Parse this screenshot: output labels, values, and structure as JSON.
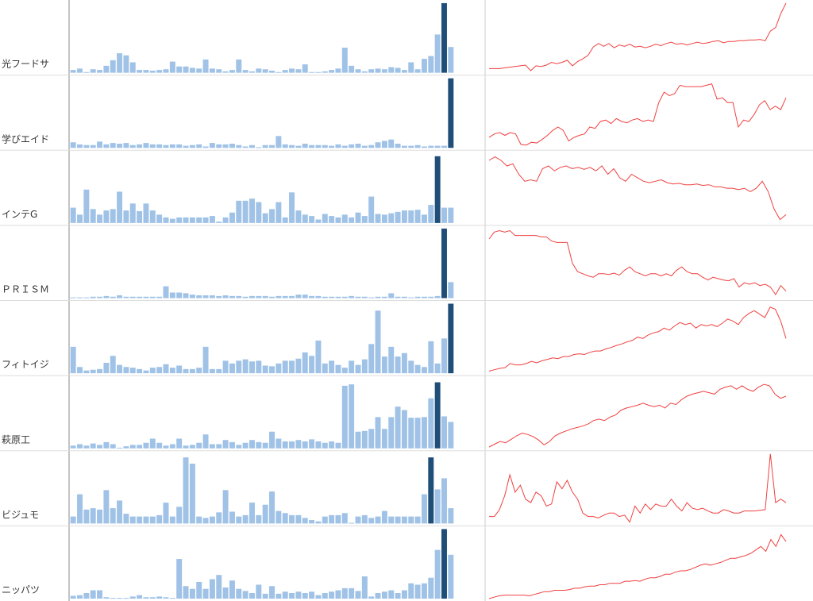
{
  "chart_data": [
    {
      "type": "combo",
      "title": "光フードサ",
      "ylim": [
        0,
        100
      ],
      "bars": {
        "color": "#9fc2e6",
        "highlight_color": "#1f4e79",
        "highlight": [
          56
        ],
        "values": [
          4,
          6,
          1,
          5,
          4,
          10,
          18,
          28,
          25,
          15,
          4,
          4,
          3,
          4,
          5,
          16,
          9,
          9,
          7,
          6,
          19,
          6,
          5,
          2,
          4,
          19,
          4,
          2,
          6,
          5,
          3,
          1,
          4,
          6,
          5,
          12,
          1,
          1,
          2,
          4,
          6,
          36,
          10,
          5,
          2,
          5,
          6,
          5,
          8,
          7,
          4,
          15,
          5,
          20,
          24,
          55,
          100,
          37
        ]
      },
      "line": {
        "color": "#f04040",
        "values": [
          6,
          6,
          6,
          7,
          8,
          9,
          10,
          11,
          3,
          10,
          9,
          11,
          15,
          13,
          15,
          18,
          10,
          16,
          20,
          25,
          37,
          42,
          38,
          42,
          36,
          40,
          38,
          41,
          37,
          38,
          36,
          38,
          41,
          39,
          42,
          44,
          41,
          42,
          40,
          42,
          44,
          42,
          43,
          45,
          46,
          43,
          45,
          45,
          46,
          46,
          47,
          47,
          48,
          46,
          60,
          65,
          85,
          100
        ]
      }
    },
    {
      "type": "combo",
      "title": "学びエイド",
      "ylim": [
        0,
        100
      ],
      "bars": {
        "color": "#9fc2e6",
        "highlight_color": "#1f4e79",
        "highlight": [
          57
        ],
        "values": [
          8,
          5,
          4,
          4,
          9,
          5,
          7,
          6,
          7,
          4,
          5,
          7,
          5,
          5,
          4,
          5,
          5,
          3,
          4,
          5,
          2,
          7,
          5,
          5,
          6,
          4,
          2,
          4,
          1,
          4,
          4,
          17,
          5,
          4,
          3,
          6,
          4,
          4,
          4,
          3,
          5,
          3,
          5,
          6,
          3,
          4,
          8,
          10,
          12,
          6,
          3,
          3,
          4,
          2,
          3,
          3,
          3,
          100
        ]
      },
      "line": {
        "color": "#f04040",
        "values": [
          15,
          20,
          22,
          18,
          22,
          20,
          5,
          4,
          8,
          7,
          12,
          18,
          25,
          30,
          25,
          10,
          15,
          18,
          20,
          30,
          28,
          38,
          40,
          35,
          42,
          38,
          36,
          40,
          42,
          38,
          40,
          38,
          65,
          80,
          75,
          78,
          90,
          88,
          88,
          88,
          88,
          90,
          92,
          70,
          72,
          65,
          65,
          30,
          40,
          38,
          48,
          62,
          68,
          55,
          60,
          55,
          72
        ]
      }
    },
    {
      "type": "combo",
      "title": "インテG",
      "ylim": [
        0,
        100
      ],
      "bars": {
        "color": "#9fc2e6",
        "highlight_color": "#1f4e79",
        "highlight": [
          55
        ],
        "values": [
          22,
          12,
          48,
          20,
          12,
          18,
          20,
          45,
          18,
          28,
          17,
          28,
          18,
          12,
          8,
          6,
          8,
          8,
          8,
          8,
          8,
          10,
          2,
          8,
          15,
          32,
          32,
          35,
          30,
          14,
          20,
          30,
          8,
          44,
          18,
          12,
          10,
          5,
          13,
          10,
          8,
          12,
          8,
          15,
          10,
          38,
          13,
          12,
          14,
          16,
          18,
          18,
          19,
          12,
          26,
          96,
          22,
          22
        ]
      },
      "line": {
        "color": "#f04040",
        "values": [
          90,
          95,
          90,
          82,
          85,
          70,
          60,
          62,
          60,
          78,
          82,
          75,
          80,
          82,
          78,
          80,
          77,
          80,
          75,
          82,
          70,
          78,
          65,
          60,
          70,
          65,
          60,
          58,
          60,
          62,
          58,
          56,
          57,
          55,
          55,
          56,
          54,
          55,
          52,
          52,
          50,
          50,
          48,
          50,
          45,
          50,
          60,
          45,
          20,
          5,
          12
        ]
      }
    },
    {
      "type": "combo",
      "title": "ＰＲＩＳＭ",
      "ylim": [
        0,
        100
      ],
      "bars": {
        "color": "#9fc2e6",
        "highlight_color": "#1f4e79",
        "highlight": [
          56
        ],
        "values": [
          1,
          1,
          1,
          2,
          2,
          3,
          2,
          4,
          2,
          2,
          2,
          2,
          2,
          2,
          17,
          8,
          8,
          7,
          5,
          4,
          4,
          4,
          3,
          4,
          3,
          3,
          2,
          3,
          3,
          3,
          2,
          3,
          3,
          3,
          5,
          5,
          3,
          3,
          2,
          2,
          2,
          2,
          3,
          2,
          2,
          1,
          2,
          2,
          7,
          2,
          2,
          1,
          2,
          2,
          2,
          3,
          100,
          23
        ]
      },
      "line": {
        "color": "#f04040",
        "values": [
          85,
          95,
          97,
          95,
          97,
          90,
          90,
          90,
          90,
          90,
          88,
          88,
          82,
          80,
          80,
          80,
          50,
          38,
          35,
          32,
          30,
          35,
          35,
          34,
          36,
          33,
          40,
          45,
          38,
          35,
          32,
          35,
          35,
          32,
          35,
          32,
          40,
          45,
          38,
          35,
          35,
          30,
          26,
          30,
          28,
          26,
          25,
          28,
          16,
          22,
          20,
          22,
          18,
          20,
          16,
          5,
          18,
          10
        ]
      }
    },
    {
      "type": "combo",
      "title": "フィトイジ",
      "ylim": [
        0,
        100
      ],
      "bars": {
        "color": "#9fc2e6",
        "highlight_color": "#1f4e79",
        "highlight": [
          57
        ],
        "values": [
          38,
          9,
          4,
          5,
          6,
          15,
          25,
          12,
          9,
          8,
          6,
          4,
          8,
          9,
          13,
          8,
          11,
          6,
          6,
          8,
          38,
          6,
          6,
          18,
          14,
          18,
          20,
          17,
          18,
          11,
          10,
          14,
          18,
          18,
          21,
          30,
          25,
          47,
          14,
          18,
          12,
          8,
          18,
          12,
          20,
          42,
          90,
          24,
          38,
          24,
          29,
          18,
          12,
          9,
          46,
          14,
          50,
          100
        ]
      },
      "line": {
        "color": "#f04040",
        "values": [
          3,
          5,
          7,
          8,
          14,
          12,
          12,
          14,
          17,
          15,
          18,
          20,
          22,
          21,
          24,
          24,
          27,
          28,
          27,
          30,
          32,
          32,
          35,
          37,
          40,
          42,
          45,
          47,
          52,
          50,
          55,
          58,
          60,
          65,
          62,
          68,
          73,
          70,
          72,
          65,
          70,
          68,
          70,
          67,
          72,
          78,
          75,
          70,
          80,
          86,
          90,
          85,
          80,
          95,
          92,
          75,
          50
        ]
      }
    },
    {
      "type": "combo",
      "title": "萩原工",
      "ylim": [
        0,
        100
      ],
      "bars": {
        "color": "#9fc2e6",
        "highlight_color": "#1f4e79",
        "highlight": [
          55
        ],
        "values": [
          4,
          6,
          4,
          7,
          5,
          9,
          6,
          1,
          3,
          5,
          5,
          8,
          14,
          8,
          4,
          6,
          14,
          4,
          5,
          8,
          20,
          6,
          6,
          12,
          9,
          5,
          8,
          12,
          9,
          8,
          24,
          14,
          10,
          10,
          12,
          10,
          13,
          10,
          8,
          10,
          8,
          90,
          92,
          24,
          25,
          28,
          45,
          28,
          45,
          60,
          55,
          44,
          44,
          45,
          72,
          95,
          46,
          38
        ]
      },
      "line": {
        "color": "#f04040",
        "values": [
          2,
          6,
          10,
          8,
          13,
          18,
          22,
          20,
          17,
          12,
          5,
          10,
          18,
          22,
          25,
          28,
          30,
          32,
          35,
          40,
          42,
          40,
          45,
          48,
          55,
          58,
          60,
          62,
          65,
          62,
          60,
          62,
          58,
          65,
          63,
          70,
          75,
          78,
          80,
          82,
          80,
          78,
          85,
          88,
          90,
          85,
          90,
          85,
          82,
          88,
          92,
          90,
          78,
          72,
          75
        ]
      }
    },
    {
      "type": "combo",
      "title": "ビジュモ",
      "ylim": [
        0,
        100
      ],
      "bars": {
        "color": "#9fc2e6",
        "highlight_color": "#1f4e79",
        "highlight": [
          54
        ],
        "values": [
          10,
          42,
          20,
          22,
          20,
          48,
          22,
          33,
          14,
          10,
          10,
          10,
          10,
          12,
          30,
          10,
          24,
          95,
          86,
          10,
          8,
          10,
          16,
          48,
          17,
          10,
          12,
          30,
          12,
          27,
          46,
          18,
          15,
          12,
          12,
          8,
          5,
          3,
          10,
          12,
          12,
          15,
          1,
          10,
          12,
          8,
          10,
          18,
          10,
          10,
          10,
          10,
          10,
          42,
          95,
          49,
          65,
          22
        ]
      },
      "line": {
        "color": "#f04040",
        "values": [
          10,
          10,
          20,
          40,
          70,
          45,
          55,
          35,
          30,
          45,
          40,
          25,
          28,
          60,
          50,
          62,
          45,
          35,
          15,
          10,
          10,
          8,
          12,
          15,
          15,
          10,
          12,
          2,
          25,
          15,
          28,
          20,
          28,
          25,
          25,
          35,
          25,
          18,
          30,
          22,
          20,
          22,
          18,
          15,
          15,
          20,
          18,
          15,
          15,
          18,
          18,
          18,
          19,
          20,
          100,
          30,
          35,
          30
        ]
      }
    },
    {
      "type": "combo",
      "title": "ニッパツ",
      "ylim": [
        0,
        100
      ],
      "bars": {
        "color": "#9fc2e6",
        "highlight_color": "#1f4e79",
        "highlight": [
          56
        ],
        "values": [
          4,
          5,
          8,
          12,
          12,
          2,
          1,
          1,
          1,
          3,
          5,
          2,
          2,
          3,
          2,
          1,
          57,
          18,
          14,
          24,
          14,
          28,
          34,
          16,
          26,
          14,
          11,
          8,
          20,
          7,
          18,
          7,
          10,
          8,
          10,
          8,
          10,
          5,
          8,
          10,
          12,
          15,
          15,
          11,
          32,
          3,
          8,
          10,
          12,
          8,
          12,
          22,
          20,
          22,
          30,
          70,
          100,
          63
        ]
      },
      "line": {
        "color": "#f04040",
        "values": [
          0,
          2,
          4,
          5,
          5,
          5,
          5,
          5,
          4,
          6,
          8,
          10,
          10,
          12,
          12,
          12,
          13,
          15,
          15,
          17,
          18,
          18,
          20,
          20,
          22,
          22,
          22,
          25,
          25,
          26,
          25,
          28,
          30,
          30,
          32,
          35,
          35,
          38,
          40,
          40,
          42,
          45,
          48,
          50,
          48,
          50,
          52,
          55,
          58,
          58,
          60,
          62,
          65,
          70,
          75,
          68,
          85,
          75,
          92,
          82
        ]
      }
    }
  ]
}
